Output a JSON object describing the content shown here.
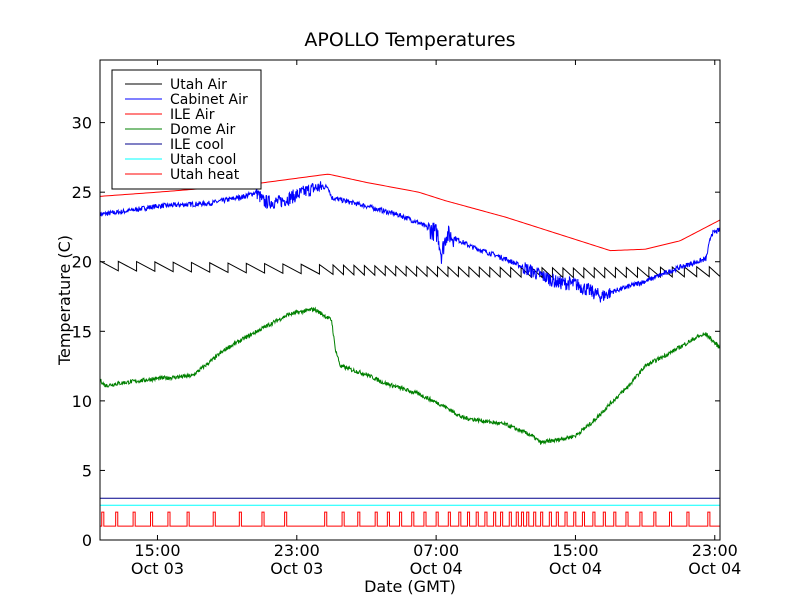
{
  "chart_data": {
    "type": "line",
    "title": "APOLLO Temperatures",
    "xlabel": "Date (GMT)",
    "ylabel": "Temperature (C)",
    "xlim": [
      11.7,
      47.3
    ],
    "ylim": [
      0,
      34.5
    ],
    "yticks": [
      0,
      5,
      10,
      15,
      20,
      25,
      30
    ],
    "xticks": [
      {
        "h": 15,
        "line1": "15:00",
        "line2": "Oct 03"
      },
      {
        "h": 23,
        "line1": "23:00",
        "line2": "Oct 03"
      },
      {
        "h": 31,
        "line1": "07:00",
        "line2": "Oct 04"
      },
      {
        "h": 39,
        "line1": "15:00",
        "line2": "Oct 04"
      },
      {
        "h": 47,
        "line1": "23:00",
        "line2": "Oct 04"
      }
    ],
    "legend_position": "top-left",
    "series": [
      {
        "name": "Utah Air",
        "color": "#000000",
        "style": "sawtooth",
        "base": 19.4,
        "amplitude": 0.7,
        "points": [
          [
            11.7,
            19.7
          ],
          [
            22,
            19.5
          ],
          [
            30,
            19.3
          ],
          [
            39,
            19.2
          ],
          [
            47.3,
            19.3
          ]
        ],
        "cycles": [
          [
            11.7,
            1.05
          ],
          [
            24,
            1.05
          ],
          [
            24.5,
            0.6
          ],
          [
            40,
            0.6
          ],
          [
            47.3,
            0.75
          ]
        ]
      },
      {
        "name": "Cabinet Air",
        "color": "#0000ff",
        "style": "noisy",
        "points": [
          [
            11.7,
            23.4
          ],
          [
            13,
            23.6
          ],
          [
            15,
            24.0
          ],
          [
            18,
            24.2
          ],
          [
            20,
            24.7
          ],
          [
            20.7,
            25.0
          ],
          [
            21.1,
            24.3
          ],
          [
            22,
            24.3
          ],
          [
            23,
            24.8
          ],
          [
            24,
            25.3
          ],
          [
            24.8,
            25.4
          ],
          [
            25,
            24.6
          ],
          [
            27,
            24.0
          ],
          [
            29,
            23.3
          ],
          [
            30,
            22.8
          ],
          [
            31.1,
            22.0
          ],
          [
            31.3,
            20.5
          ],
          [
            31.6,
            22.0
          ],
          [
            33,
            21.1
          ],
          [
            35,
            20.2
          ],
          [
            36.5,
            19.3
          ],
          [
            38,
            18.5
          ],
          [
            39,
            18.4
          ],
          [
            40,
            17.8
          ],
          [
            40.5,
            17.5
          ],
          [
            41,
            17.8
          ],
          [
            43,
            18.6
          ],
          [
            45,
            19.6
          ],
          [
            46.5,
            20.2
          ],
          [
            46.8,
            22.0
          ],
          [
            47.3,
            22.3
          ]
        ]
      },
      {
        "name": "ILE Air",
        "color": "#ff0000",
        "style": "smooth",
        "points": [
          [
            11.7,
            24.7
          ],
          [
            15,
            25.0
          ],
          [
            20,
            25.5
          ],
          [
            23,
            26.0
          ],
          [
            24.8,
            26.3
          ],
          [
            27,
            25.7
          ],
          [
            30,
            25.0
          ],
          [
            31.5,
            24.4
          ],
          [
            35,
            23.2
          ],
          [
            38,
            22.0
          ],
          [
            40,
            21.2
          ],
          [
            41,
            20.8
          ],
          [
            43,
            20.9
          ],
          [
            45,
            21.5
          ],
          [
            47.3,
            23.0
          ]
        ]
      },
      {
        "name": "Dome Air",
        "color": "#008000",
        "style": "noisy",
        "points": [
          [
            11.7,
            11.5
          ],
          [
            12,
            11.1
          ],
          [
            13,
            11.3
          ],
          [
            15,
            11.6
          ],
          [
            17,
            11.8
          ],
          [
            18,
            12.8
          ],
          [
            19,
            13.8
          ],
          [
            21,
            15.2
          ],
          [
            22.5,
            16.2
          ],
          [
            24,
            16.6
          ],
          [
            25,
            15.8
          ],
          [
            25.2,
            13.8
          ],
          [
            25.5,
            12.5
          ],
          [
            27,
            11.9
          ],
          [
            28,
            11.3
          ],
          [
            30,
            10.5
          ],
          [
            31.5,
            9.6
          ],
          [
            32.5,
            8.8
          ],
          [
            35,
            8.3
          ],
          [
            36.5,
            7.5
          ],
          [
            37,
            7.0
          ],
          [
            38,
            7.2
          ],
          [
            39,
            7.5
          ],
          [
            40,
            8.5
          ],
          [
            41,
            9.8
          ],
          [
            42,
            11.0
          ],
          [
            43,
            12.5
          ],
          [
            44.5,
            13.5
          ],
          [
            46,
            14.6
          ],
          [
            46.5,
            14.8
          ],
          [
            47.3,
            13.8
          ]
        ]
      },
      {
        "name": "ILE cool",
        "color": "#00008b",
        "style": "flat",
        "points": [
          [
            11.7,
            3.0
          ],
          [
            47.3,
            3.0
          ]
        ]
      },
      {
        "name": "Utah cool",
        "color": "#00ffff",
        "style": "flat",
        "points": [
          [
            11.7,
            2.5
          ],
          [
            47.3,
            2.5
          ]
        ]
      },
      {
        "name": "Utah heat",
        "color": "#ff0000",
        "style": "pulses",
        "low": 1.0,
        "high": 2.0,
        "pulse_hours": [
          11.8,
          12.6,
          13.6,
          14.6,
          15.6,
          16.7,
          18.2,
          19.7,
          21.0,
          22.3,
          24.6,
          25.6,
          26.5,
          27.5,
          28.2,
          28.9,
          29.6,
          30.3,
          31.0,
          31.7,
          32.3,
          32.8,
          33.3,
          33.8,
          34.3,
          34.7,
          35.2,
          35.6,
          35.9,
          36.2,
          36.6,
          37.0,
          37.5,
          37.9,
          38.4,
          38.9,
          39.4,
          40.0,
          40.6,
          41.2,
          41.9,
          42.7,
          43.5,
          44.4,
          45.4,
          46.6
        ]
      }
    ]
  }
}
